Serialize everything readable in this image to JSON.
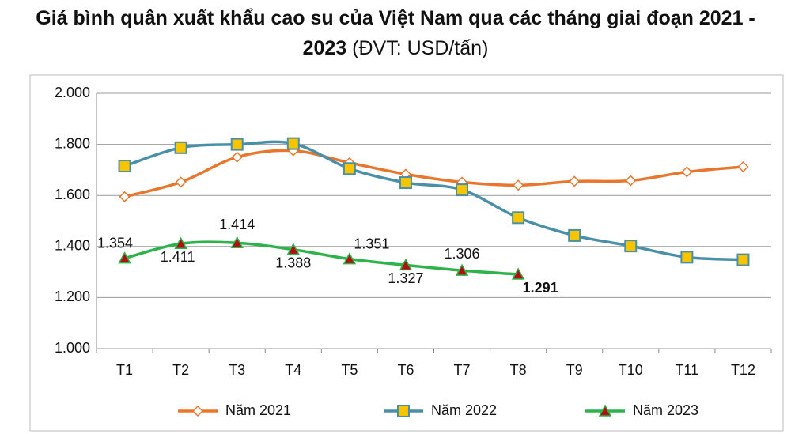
{
  "chart_data": {
    "type": "line",
    "title": "Giá bình quân xuất khẩu cao su của Việt Nam qua các tháng giai đoạn 2021 - 2023",
    "subtitle": "(ĐVT: USD/tấn)",
    "categories": [
      "T1",
      "T2",
      "T3",
      "T4",
      "T5",
      "T6",
      "T7",
      "T8",
      "T9",
      "T10",
      "T11",
      "T12"
    ],
    "ylim": [
      1000,
      2000
    ],
    "yticks": [
      {
        "value": 1000,
        "label": "1.000"
      },
      {
        "value": 1200,
        "label": "1.200"
      },
      {
        "value": 1400,
        "label": "1.400"
      },
      {
        "value": 1600,
        "label": "1.600"
      },
      {
        "value": 1800,
        "label": "1.800"
      },
      {
        "value": 2000,
        "label": "2.000"
      }
    ],
    "grid": true,
    "legend": "bottom",
    "series": [
      {
        "name": "Năm 2021",
        "color": "#e8762c",
        "marker": "diamond",
        "values": [
          1595,
          1652,
          1750,
          1775,
          1728,
          1683,
          1652,
          1640,
          1655,
          1658,
          1692,
          1712
        ]
      },
      {
        "name": "Năm 2022",
        "color": "#4a8fa8",
        "marker": "square",
        "values": [
          1715,
          1787,
          1800,
          1803,
          1705,
          1650,
          1622,
          1513,
          1443,
          1402,
          1358,
          1348
        ]
      },
      {
        "name": "Năm 2023",
        "color": "#2db34a",
        "marker": "triangle",
        "values": [
          1354,
          1411,
          1414,
          1388,
          1351,
          1327,
          1306,
          1291,
          null,
          null,
          null,
          null
        ],
        "value_labels": [
          "1.354",
          "1.411",
          "1.414",
          "1.388",
          "1.351",
          "1.327",
          "1.306",
          "1.291",
          null,
          null,
          null,
          null
        ]
      }
    ]
  }
}
